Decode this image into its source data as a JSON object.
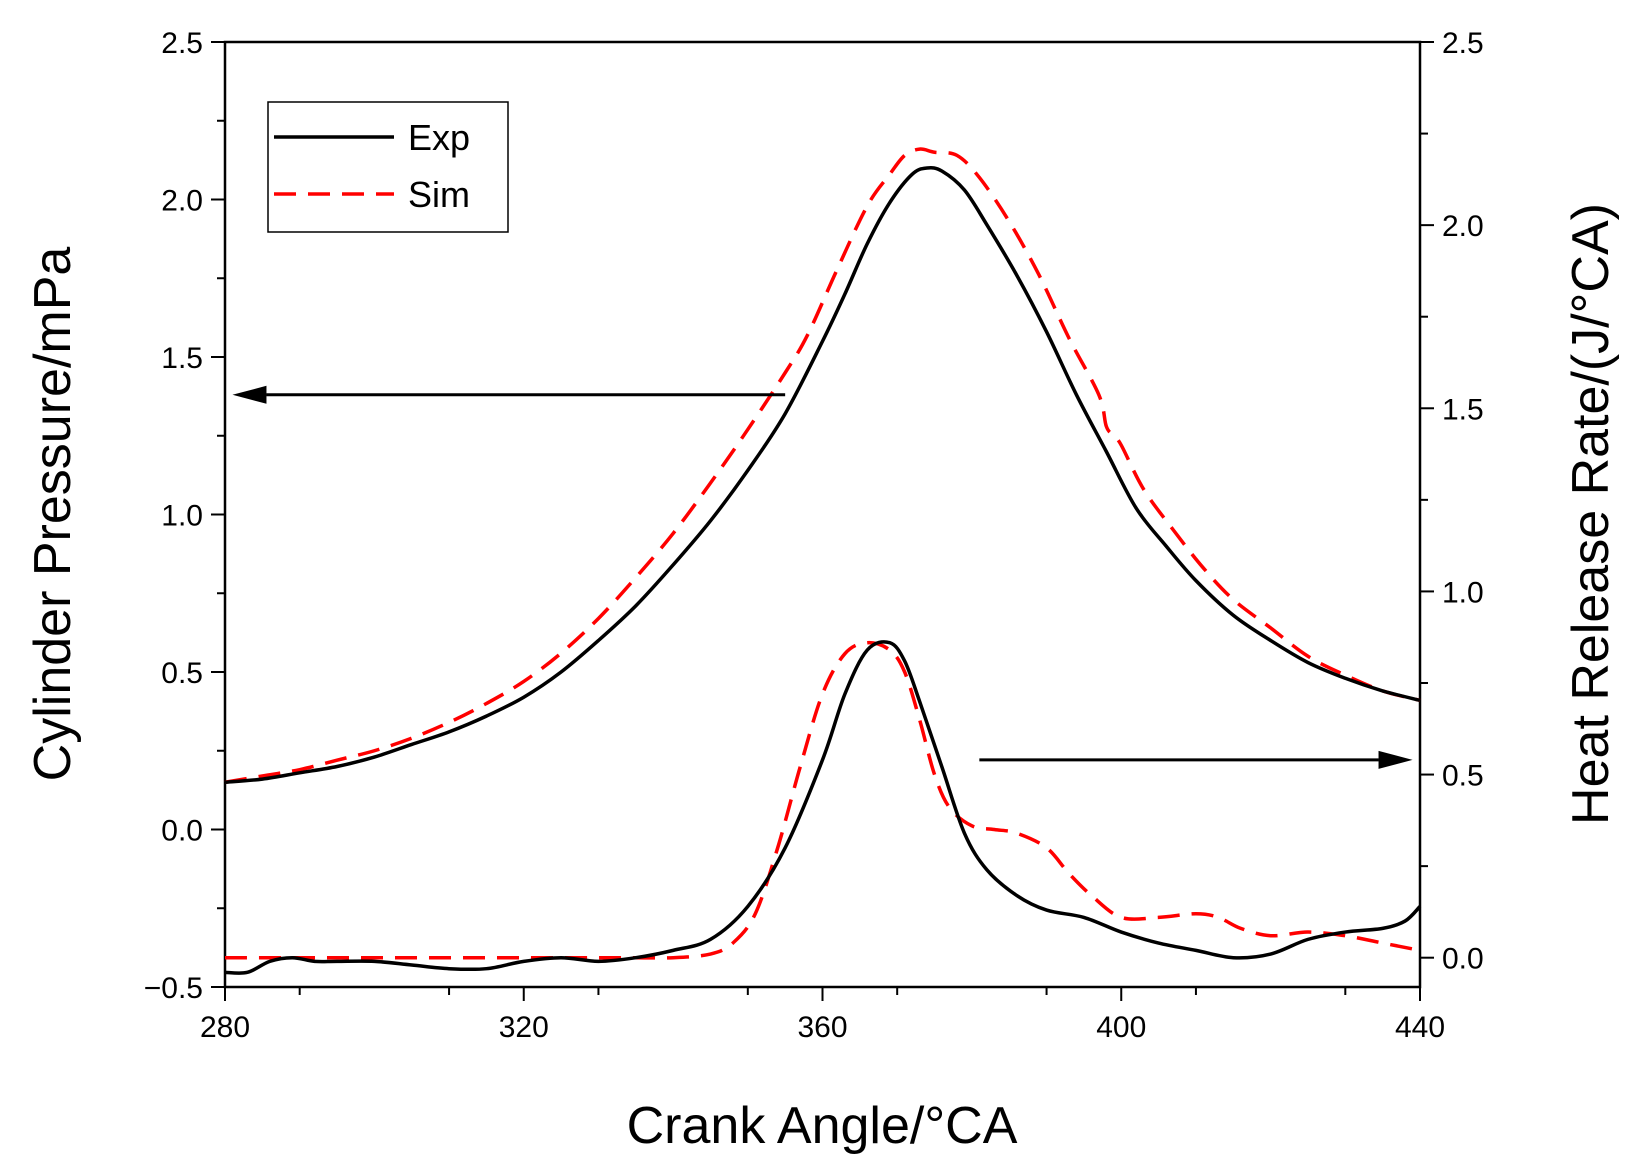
{
  "chart_data": {
    "type": "line",
    "title": "",
    "xlabel": "Crank Angle/°CA",
    "ylabel_left": "Cylinder Pressure/mPa",
    "ylabel_right": "Heat Release Rate/(J/°CA)",
    "xlim": [
      280,
      440
    ],
    "ylim_left": [
      -0.5,
      2.5
    ],
    "ylim_right": [
      -0.08,
      2.5
    ],
    "x_ticks": [
      "280",
      "320",
      "360",
      "400",
      "440"
    ],
    "y_ticks_left": [
      "−0.5",
      "0.0",
      "0.5",
      "1.0",
      "1.5",
      "2.0",
      "2.5"
    ],
    "y_ticks_right": [
      "0.0",
      "0.5",
      "1.0",
      "1.5",
      "2.0",
      "2.5"
    ],
    "legend": {
      "position": "top-left",
      "entries": [
        "Exp",
        "Sim"
      ]
    },
    "colors": {
      "exp": "#000000",
      "sim": "#ff0000"
    },
    "annotations": [
      {
        "text": "arrow pointing to left axis",
        "from_x": 355,
        "to_x": 281,
        "y": 1.38,
        "axis": "left"
      },
      {
        "text": "arrow pointing to right axis",
        "from_x": 381,
        "to_x": 439,
        "y": 0.54,
        "axis": "right"
      }
    ],
    "series": [
      {
        "name": "Exp",
        "axis": "left",
        "style": "solid",
        "x": [
          280,
          285,
          290,
          295,
          300,
          305,
          310,
          315,
          320,
          325,
          330,
          335,
          340,
          345,
          350,
          355,
          360,
          363,
          366,
          369,
          372,
          374,
          376,
          379,
          382,
          386,
          390,
          394,
          398,
          402,
          406,
          410,
          415,
          420,
          425,
          430,
          435,
          440
        ],
        "y": [
          0.15,
          0.16,
          0.18,
          0.2,
          0.23,
          0.27,
          0.31,
          0.36,
          0.42,
          0.5,
          0.6,
          0.71,
          0.84,
          0.98,
          1.14,
          1.32,
          1.55,
          1.7,
          1.86,
          1.99,
          2.08,
          2.1,
          2.09,
          2.03,
          1.92,
          1.76,
          1.58,
          1.38,
          1.2,
          1.02,
          0.9,
          0.79,
          0.68,
          0.6,
          0.53,
          0.48,
          0.44,
          0.41
        ]
      },
      {
        "name": "Sim",
        "axis": "left",
        "style": "dashed",
        "x": [
          280,
          285,
          290,
          295,
          300,
          305,
          310,
          315,
          320,
          325,
          330,
          335,
          340,
          345,
          350,
          355,
          358,
          362,
          366,
          369,
          371,
          373,
          375,
          378,
          381,
          385,
          389,
          393,
          397,
          398,
          399,
          400,
          403,
          407,
          411,
          415,
          420,
          425,
          430,
          435,
          440
        ],
        "y": [
          0.15,
          0.17,
          0.19,
          0.22,
          0.25,
          0.29,
          0.34,
          0.4,
          0.47,
          0.56,
          0.67,
          0.8,
          0.94,
          1.1,
          1.27,
          1.45,
          1.57,
          1.78,
          1.98,
          2.08,
          2.14,
          2.16,
          2.15,
          2.14,
          2.07,
          1.93,
          1.76,
          1.56,
          1.38,
          1.28,
          1.25,
          1.22,
          1.08,
          0.95,
          0.83,
          0.73,
          0.64,
          0.55,
          0.49,
          0.44,
          0.41
        ]
      },
      {
        "name": "Exp",
        "axis": "right",
        "style": "solid",
        "x": [
          280,
          283,
          286,
          289,
          292,
          295,
          300,
          305,
          310,
          315,
          320,
          325,
          330,
          335,
          340,
          345,
          350,
          355,
          360,
          363,
          366,
          369,
          371,
          373,
          376,
          379,
          382,
          386,
          390,
          395,
          400,
          405,
          410,
          415,
          420,
          425,
          430,
          435,
          438,
          440
        ],
        "y": [
          -0.04,
          -0.04,
          -0.01,
          0.0,
          -0.01,
          -0.01,
          -0.01,
          -0.02,
          -0.03,
          -0.03,
          -0.01,
          0.0,
          -0.01,
          0.0,
          0.02,
          0.05,
          0.14,
          0.3,
          0.54,
          0.72,
          0.84,
          0.86,
          0.81,
          0.7,
          0.52,
          0.34,
          0.24,
          0.17,
          0.13,
          0.11,
          0.07,
          0.04,
          0.02,
          0.0,
          0.01,
          0.05,
          0.07,
          0.08,
          0.1,
          0.14
        ]
      },
      {
        "name": "Sim",
        "axis": "right",
        "style": "dashed",
        "x": [
          280,
          290,
          300,
          310,
          320,
          330,
          335,
          340,
          345,
          348,
          351,
          354,
          357,
          360,
          363,
          366,
          369,
          371,
          373,
          375,
          377,
          380,
          383,
          386,
          390,
          393,
          396,
          400,
          405,
          410,
          413,
          416,
          420,
          425,
          430,
          435,
          440
        ],
        "y": [
          0.0,
          0.0,
          0.0,
          0.0,
          0.0,
          0.0,
          0.0,
          0.0,
          0.01,
          0.04,
          0.12,
          0.3,
          0.52,
          0.72,
          0.83,
          0.86,
          0.84,
          0.78,
          0.65,
          0.5,
          0.41,
          0.36,
          0.35,
          0.34,
          0.3,
          0.23,
          0.17,
          0.11,
          0.11,
          0.12,
          0.11,
          0.08,
          0.06,
          0.07,
          0.06,
          0.04,
          0.02
        ]
      }
    ]
  }
}
